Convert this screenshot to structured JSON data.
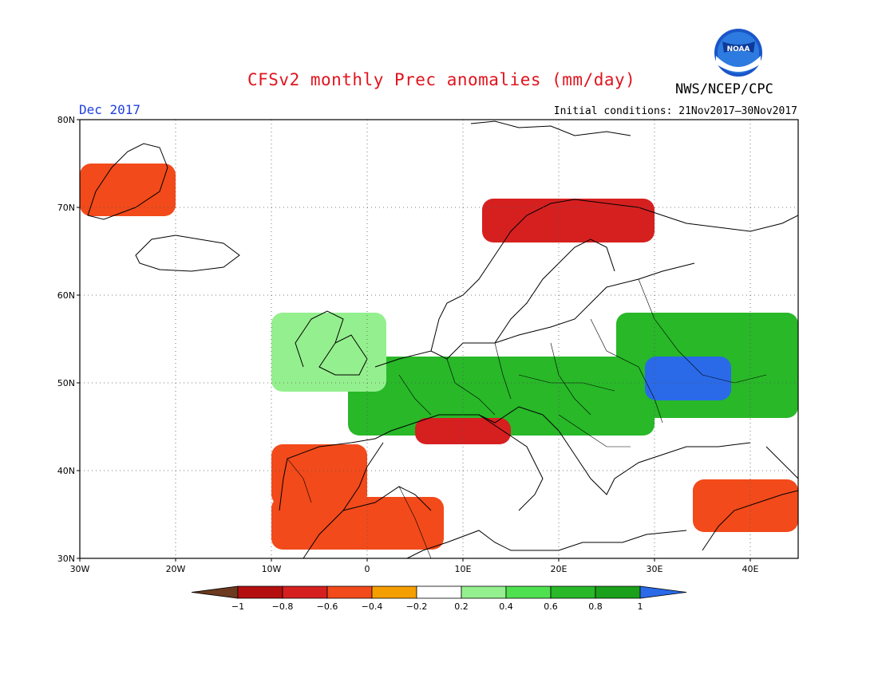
{
  "header": {
    "title": "CFSv2 monthly Prec anomalies (mm/day)",
    "agency": "NWS/NCEP/CPC",
    "logo_text": "NOAA",
    "valid_month": "Dec 2017",
    "initial_conditions": "Initial conditions: 21Nov2017–30Nov2017"
  },
  "map": {
    "lon_range": [
      -30,
      45
    ],
    "lat_range": [
      30,
      80
    ],
    "lat_ticks": [
      {
        "value": 80,
        "label": "80N"
      },
      {
        "value": 70,
        "label": "70N"
      },
      {
        "value": 60,
        "label": "60N"
      },
      {
        "value": 50,
        "label": "50N"
      },
      {
        "value": 40,
        "label": "40N"
      },
      {
        "value": 30,
        "label": "30N"
      }
    ],
    "lon_ticks": [
      {
        "value": -30,
        "label": "30W"
      },
      {
        "value": -20,
        "label": "20W"
      },
      {
        "value": -10,
        "label": "10W"
      },
      {
        "value": 0,
        "label": "0"
      },
      {
        "value": 10,
        "label": "10E"
      },
      {
        "value": 20,
        "label": "20E"
      },
      {
        "value": 30,
        "label": "30E"
      },
      {
        "value": 40,
        "label": "40E"
      }
    ],
    "gridlines": true,
    "anomaly_patches": [
      {
        "name": "central-europe-wet",
        "level": 0.7,
        "lon": [
          -2,
          30
        ],
        "lat": [
          44,
          53
        ]
      },
      {
        "name": "eastern-europe-wet",
        "level": 0.6,
        "lon": [
          26,
          45
        ],
        "lat": [
          46,
          58
        ]
      },
      {
        "name": "ukraine-russia-max",
        "level": 1.0,
        "lon": [
          29,
          38
        ],
        "lat": [
          48,
          53
        ]
      },
      {
        "name": "british-isles-wet",
        "level": 0.3,
        "lon": [
          -10,
          2
        ],
        "lat": [
          49,
          58
        ]
      },
      {
        "name": "greenland-dry",
        "level": -0.5,
        "lon": [
          -30,
          -20
        ],
        "lat": [
          69,
          75
        ]
      },
      {
        "name": "norway-coast-dry",
        "level": -0.6,
        "lon": [
          12,
          30
        ],
        "lat": [
          66,
          71
        ]
      },
      {
        "name": "iberia-dry",
        "level": -0.5,
        "lon": [
          -10,
          0
        ],
        "lat": [
          36,
          43
        ]
      },
      {
        "name": "north-italy-dry",
        "level": -0.7,
        "lon": [
          5,
          15
        ],
        "lat": [
          43,
          46
        ]
      },
      {
        "name": "north-africa-dry",
        "level": -0.4,
        "lon": [
          -10,
          8
        ],
        "lat": [
          31,
          37
        ]
      },
      {
        "name": "middle-east-dry",
        "level": -0.4,
        "lon": [
          34,
          45
        ],
        "lat": [
          33,
          39
        ]
      }
    ]
  },
  "legend": {
    "ticks": [
      "−1",
      "−0.8",
      "−0.6",
      "−0.4",
      "−0.2",
      "0.2",
      "0.4",
      "0.6",
      "0.8",
      "1"
    ],
    "colors": [
      "#6b3a1f",
      "#b40f0f",
      "#d62020",
      "#f24a1a",
      "#f59e00",
      "#ffffff",
      "#94f08e",
      "#4fe04f",
      "#28b828",
      "#1aa01a",
      "#2a6ae8"
    ]
  }
}
